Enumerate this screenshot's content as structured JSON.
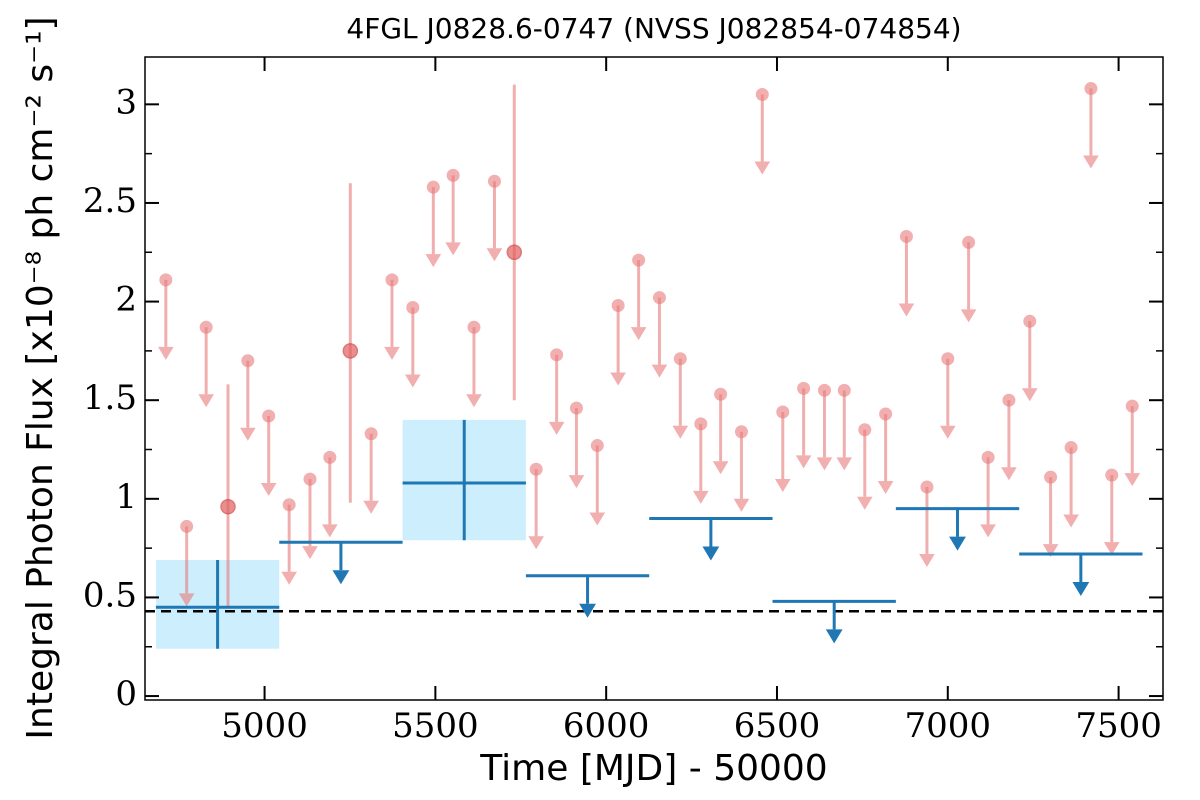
{
  "chart_data": {
    "type": "lightcurve",
    "title": "4FGL J0828.6-0747 (NVSS J082854-074854)",
    "x_label": "Time [MJD] - 50000",
    "y_label": "Integral Photon Flux [x10⁻⁸ ph cm⁻² s⁻¹]",
    "xlim": [
      4650,
      7630
    ],
    "ylim": [
      -0.02,
      3.24
    ],
    "xticks": [
      5000,
      5500,
      6000,
      6500,
      7000,
      7500
    ],
    "yticks": [
      0,
      0.5,
      1,
      1.5,
      2,
      2.5,
      3
    ],
    "yminorticks": [
      0.25,
      0.75,
      1.25,
      1.75,
      2.25,
      2.75
    ],
    "reference_line": 0.43,
    "monthly_color": "#e87a7a",
    "yearly_color": "#1f77b4",
    "yearly_box_color": "#cdeefd",
    "monthly_limits": {
      "x": [
        4711,
        4772,
        4829,
        4951,
        5012,
        5072,
        5133,
        5191,
        5312,
        5373,
        5434,
        5494,
        5552,
        5613,
        5673,
        5795,
        5855,
        5913,
        5974,
        6035,
        6095,
        6156,
        6217,
        6277,
        6335,
        6396,
        6457,
        6517,
        6578,
        6639,
        6697,
        6757,
        6818,
        6879,
        6939,
        7000,
        7061,
        7118,
        7179,
        7240,
        7301,
        7361,
        7419,
        7480,
        7540
      ],
      "values": [
        2.11,
        0.86,
        1.87,
        1.7,
        1.42,
        0.97,
        1.1,
        1.21,
        1.33,
        2.11,
        1.97,
        2.58,
        2.64,
        1.87,
        2.61,
        1.15,
        1.73,
        1.46,
        1.27,
        1.98,
        2.21,
        2.02,
        1.71,
        1.38,
        1.53,
        1.34,
        3.05,
        1.44,
        1.56,
        1.55,
        1.55,
        1.35,
        1.43,
        2.33,
        1.06,
        1.71,
        2.3,
        1.21,
        1.5,
        1.9,
        1.11,
        1.26,
        3.08,
        1.12,
        1.47
      ]
    },
    "monthly_detections": {
      "x": [
        4893,
        5251,
        5731
      ],
      "values": [
        0.96,
        1.75,
        2.25
      ],
      "lower": [
        0.45,
        0.98,
        1.5
      ],
      "upper": [
        1.58,
        2.6,
        3.1
      ]
    },
    "yearly_detections": {
      "x_start": [
        4682,
        5404
      ],
      "x_end": [
        5043,
        5765
      ],
      "values": [
        0.45,
        1.08
      ],
      "lower": [
        0.24,
        0.79
      ],
      "upper": [
        0.69,
        1.4
      ]
    },
    "yearly_limits": {
      "x_start": [
        5043,
        5765,
        6126,
        6487,
        6848,
        7209
      ],
      "x_end": [
        5404,
        6126,
        6487,
        6848,
        7209,
        7570
      ],
      "values": [
        0.78,
        0.61,
        0.9,
        0.48,
        0.95,
        0.72
      ]
    }
  }
}
